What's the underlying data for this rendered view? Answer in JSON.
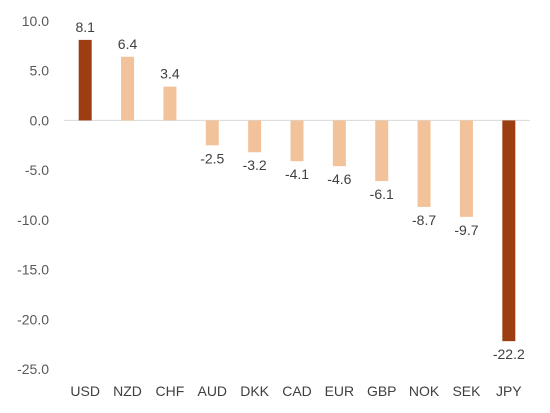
{
  "chart_data": {
    "type": "bar",
    "title": "",
    "xlabel": "",
    "ylabel": "",
    "categories": [
      "USD",
      "NZD",
      "CHF",
      "AUD",
      "DKK",
      "CAD",
      "EUR",
      "GBP",
      "NOK",
      "SEK",
      "JPY"
    ],
    "values": [
      8.1,
      6.4,
      3.4,
      -2.5,
      -3.2,
      -4.1,
      -4.6,
      -6.1,
      -8.7,
      -9.7,
      -22.2
    ],
    "data_labels": [
      "8.1",
      "6.4",
      "3.4",
      "-2.5",
      "-3.2",
      "-4.1",
      "-4.6",
      "-6.1",
      "-8.7",
      "-9.7",
      "-22.2"
    ],
    "ylim": [
      -25,
      10
    ],
    "yticks": [
      10,
      5,
      0,
      -5,
      -10,
      -15,
      -20,
      -25
    ],
    "ytick_labels": [
      "10.0",
      "5.0",
      "0.0",
      "-5.0",
      "-10.0",
      "-15.0",
      "-20.0",
      "-25.0"
    ],
    "grid": false,
    "legend": "none",
    "colors": {
      "highlight": "#9c3e12",
      "default": "#f2c39b"
    },
    "highlighted_categories": [
      "USD",
      "JPY"
    ]
  }
}
